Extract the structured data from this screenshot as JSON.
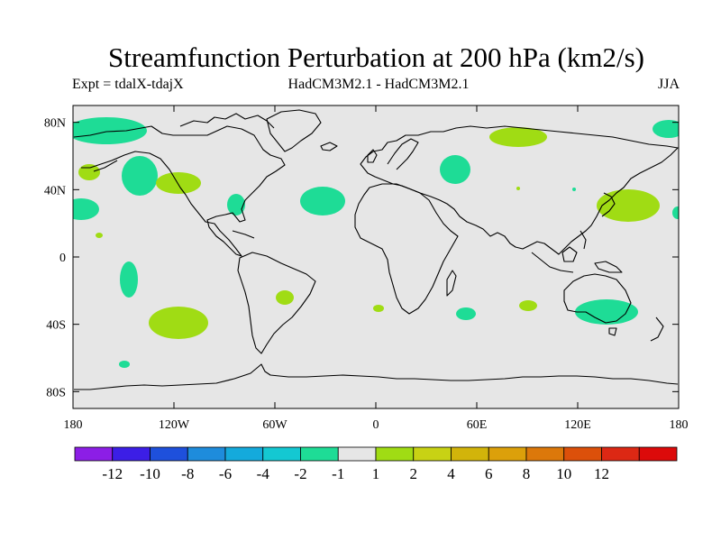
{
  "title": "Streamfunction Perturbation at 200 hPa (km2/s)",
  "subtitle_left": "Expt = tdalX-tdajX",
  "subtitle_center": "HadCM3M2.1 - HadCM3M2.1",
  "subtitle_right": "JJA",
  "map": {
    "lat_labels": [
      "80N",
      "40N",
      "0",
      "40S",
      "80S"
    ],
    "lon_labels": [
      "180",
      "120W",
      "60W",
      "0",
      "60E",
      "120E",
      "180"
    ],
    "background_color": "#e6e6e6"
  },
  "colorbar": {
    "colors": [
      "#8c1ee6",
      "#3c1ee6",
      "#1e50dc",
      "#1e8cdc",
      "#14aadc",
      "#14c8d2",
      "#1edc96",
      "#e6e6e6",
      "#a0dc14",
      "#c8d214",
      "#d2b40a",
      "#dca00a",
      "#dc780a",
      "#dc500a",
      "#dc2814",
      "#dc0a0a"
    ],
    "labels": [
      "-12",
      "-10",
      "-8",
      "-6",
      "-4",
      "-2",
      "-1",
      "1",
      "2",
      "4",
      "6",
      "8",
      "10",
      "12"
    ]
  },
  "anomalies": {
    "negative_color": "#1edc96",
    "positive_color": "#a0dc14"
  }
}
